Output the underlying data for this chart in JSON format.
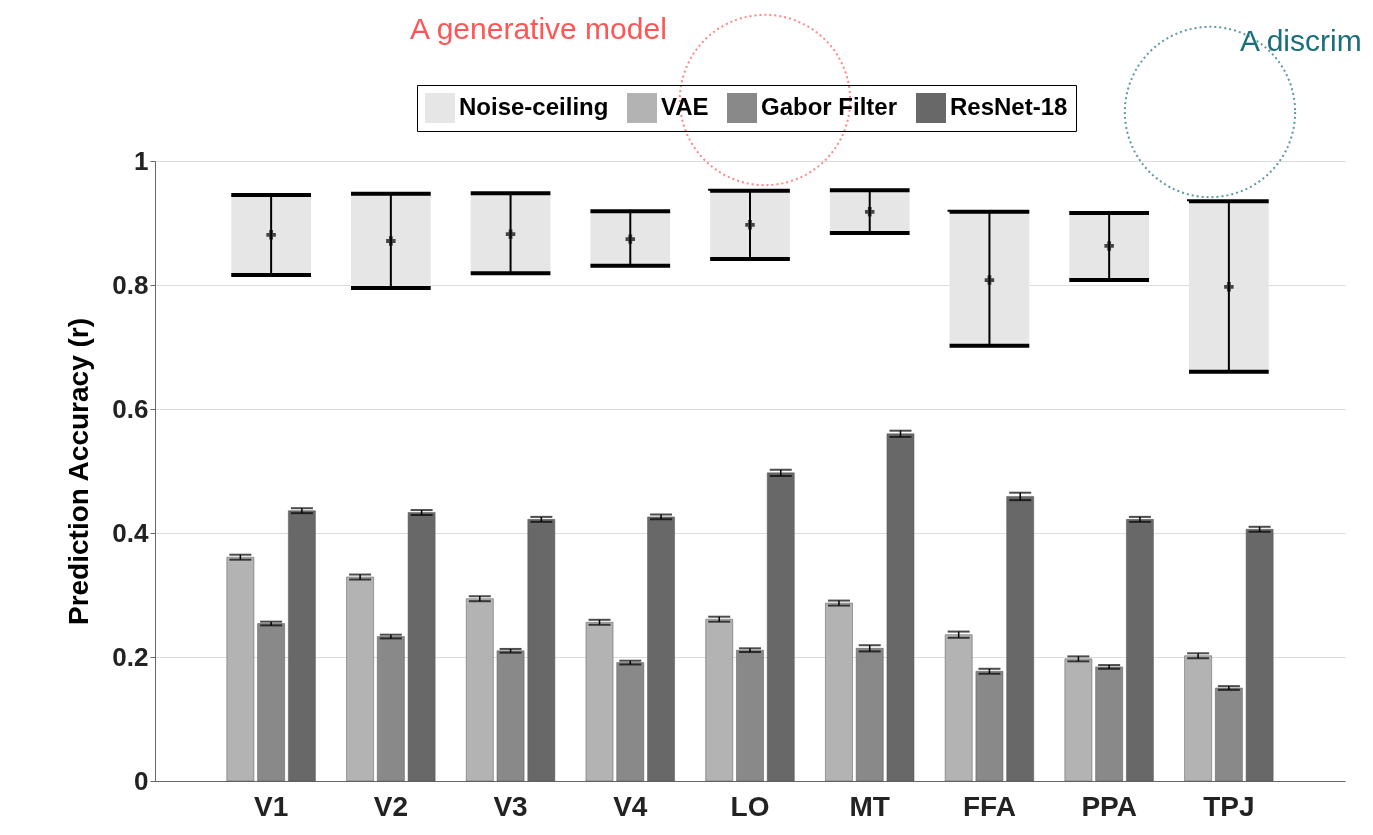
{
  "chart_data": {
    "type": "bar",
    "ylabel": "Prediction Accuracy (r)",
    "categories": [
      "V1",
      "V2",
      "V3",
      "V4",
      "LO",
      "MT",
      "FFA",
      "PPA",
      "TPJ"
    ],
    "ylim": [
      0,
      1
    ],
    "yticks": [
      0,
      0.2,
      0.4,
      0.6,
      0.8,
      1
    ],
    "grid": "y",
    "legend": "top",
    "annotations": [
      "A generative model",
      "A discrim"
    ],
    "series": [
      {
        "name": "Noise-ceiling",
        "color": "#e6e6e6",
        "base": [
          0.816,
          0.795,
          0.819,
          0.831,
          0.842,
          0.884,
          0.702,
          0.808,
          0.66
        ],
        "values": [
          0.129,
          0.152,
          0.129,
          0.088,
          0.11,
          0.069,
          0.216,
          0.108,
          0.275
        ]
      },
      {
        "type": "scatter",
        "marker": "cross",
        "color": "#000000",
        "values": [
          0.881,
          0.871,
          0.882,
          0.874,
          0.897,
          0.918,
          0.808,
          0.863,
          0.797
        ],
        "errors": [
          [
            0.816,
            0.945
          ],
          [
            0.795,
            0.947
          ],
          [
            0.819,
            0.948
          ],
          [
            0.831,
            0.919
          ],
          [
            0.842,
            0.952
          ],
          [
            0.884,
            0.953
          ],
          [
            0.702,
            0.918
          ],
          [
            0.808,
            0.916
          ],
          [
            0.66,
            0.935
          ]
        ]
      },
      {
        "name": "VAE",
        "color": "#b3b3b3",
        "values": [
          0.361,
          0.329,
          0.294,
          0.256,
          0.261,
          0.287,
          0.236,
          0.197,
          0.202
        ],
        "errors": [
          0.004,
          0.004,
          0.004,
          0.004,
          0.004,
          0.004,
          0.005,
          0.004,
          0.004
        ]
      },
      {
        "name": "Gabor Filter",
        "color": "#898989",
        "values": [
          0.254,
          0.233,
          0.21,
          0.191,
          0.211,
          0.214,
          0.177,
          0.184,
          0.15
        ],
        "errors": [
          0.003,
          0.003,
          0.003,
          0.003,
          0.003,
          0.005,
          0.004,
          0.003,
          0.003
        ]
      },
      {
        "name": "ResNet-18",
        "color": "#686868",
        "values": [
          0.436,
          0.433,
          0.422,
          0.426,
          0.497,
          0.56,
          0.459,
          0.422,
          0.406
        ],
        "errors": [
          0.004,
          0.004,
          0.004,
          0.004,
          0.005,
          0.005,
          0.006,
          0.004,
          0.004
        ]
      }
    ]
  }
}
